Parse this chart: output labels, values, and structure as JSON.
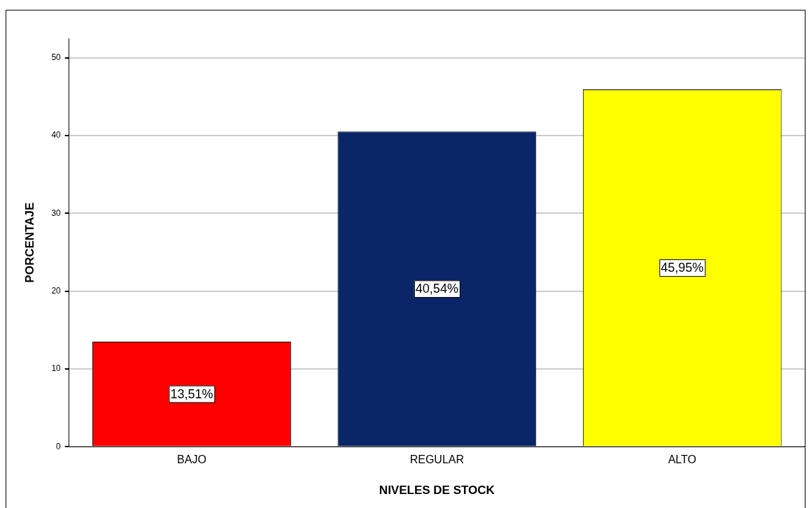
{
  "chart_data": {
    "type": "bar",
    "xlabel": "NIVELES DE STOCK",
    "ylabel": "PORCENTAJE",
    "categories": [
      "BAJO",
      "REGULAR",
      "ALTO"
    ],
    "values": [
      13.51,
      40.54,
      45.95
    ],
    "colors": [
      "#ff0000",
      "#0a2568",
      "#ffff00"
    ],
    "value_labels": [
      "13,51%",
      "40,54%",
      "45,95%"
    ],
    "ylim": [
      0,
      52.5
    ],
    "yticks": [
      0,
      10,
      20,
      30,
      40,
      50
    ],
    "grid": "y",
    "legend": false
  }
}
